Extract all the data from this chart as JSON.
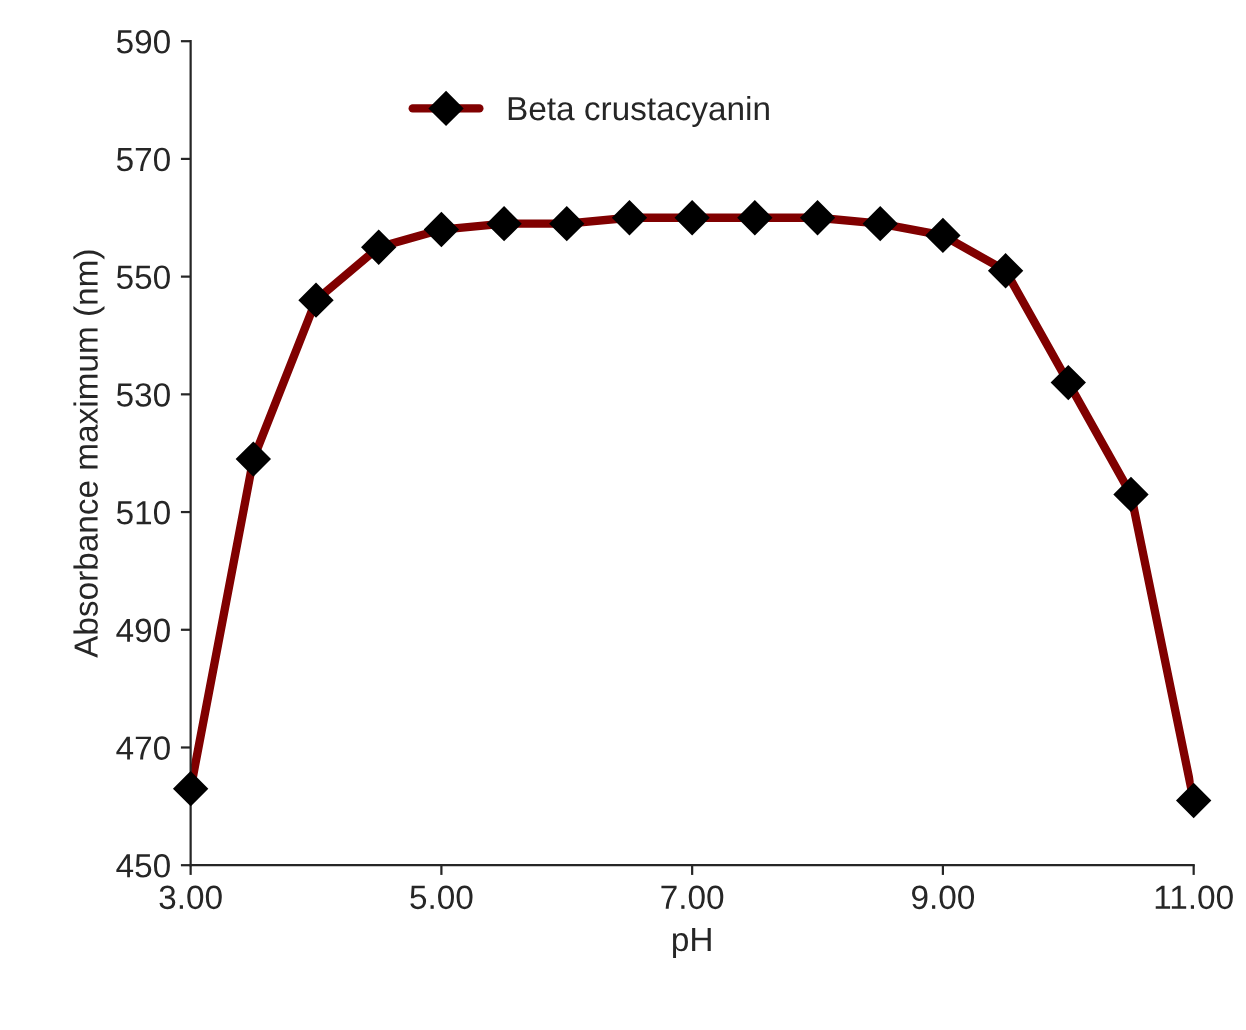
{
  "chart_data": {
    "type": "line",
    "xlabel": "pH",
    "ylabel": "Absorbance maximum (nm)",
    "x": [
      3.0,
      3.5,
      4.0,
      4.5,
      5.0,
      5.5,
      6.0,
      6.5,
      7.0,
      7.5,
      8.0,
      8.5,
      9.0,
      9.5,
      10.0,
      10.5,
      11.0
    ],
    "series": [
      {
        "name": "Beta crustacyanin",
        "color": "#800000",
        "values": [
          463,
          519,
          546,
          555,
          558,
          559,
          559,
          560,
          560,
          560,
          560,
          559,
          557,
          551,
          532,
          513,
          461
        ]
      }
    ],
    "xlim": [
      3,
      11
    ],
    "xticks": [
      {
        "value": 3,
        "label": "3.00"
      },
      {
        "value": 5,
        "label": "5.00"
      },
      {
        "value": 7,
        "label": "7.00"
      },
      {
        "value": 9,
        "label": "9.00"
      },
      {
        "value": 11,
        "label": "11.00"
      }
    ],
    "ylim": [
      450,
      590
    ],
    "yticks": [
      450,
      470,
      490,
      510,
      530,
      550,
      570,
      590
    ],
    "grid": false,
    "legend": "top",
    "marker": "diamond",
    "line_style": "solid"
  }
}
